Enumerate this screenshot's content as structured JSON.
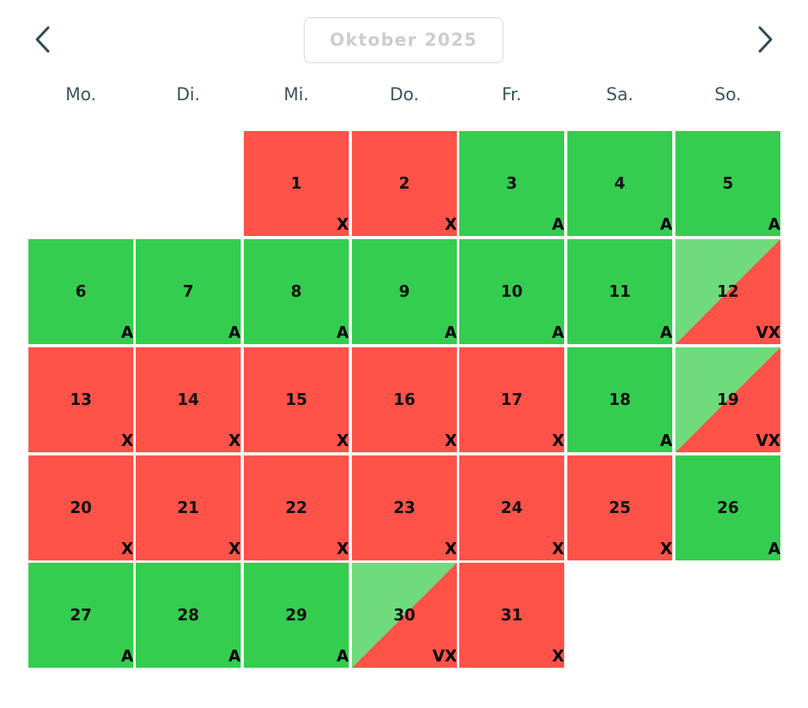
{
  "header": {
    "month_label": "Oktober 2025",
    "prev_icon": "chevron-left-icon",
    "next_icon": "chevron-right-icon"
  },
  "weekdays": [
    "Mo.",
    "Di.",
    "Mi.",
    "Do.",
    "Fr.",
    "Sa.",
    "So."
  ],
  "colors": {
    "available": "#35cd4f",
    "unavailable": "#ff5249",
    "partial_light_green": "#6fdb7d",
    "weekday_text": "#3a5560",
    "month_text": "#cdcdcd"
  },
  "days": [
    {
      "day": "1",
      "code": "X",
      "status": "red"
    },
    {
      "day": "2",
      "code": "X",
      "status": "red"
    },
    {
      "day": "3",
      "code": "A",
      "status": "green"
    },
    {
      "day": "4",
      "code": "A",
      "status": "green"
    },
    {
      "day": "5",
      "code": "A",
      "status": "green"
    },
    {
      "day": "6",
      "code": "A",
      "status": "green"
    },
    {
      "day": "7",
      "code": "A",
      "status": "green"
    },
    {
      "day": "8",
      "code": "A",
      "status": "green"
    },
    {
      "day": "9",
      "code": "A",
      "status": "green"
    },
    {
      "day": "10",
      "code": "A",
      "status": "green"
    },
    {
      "day": "11",
      "code": "A",
      "status": "green"
    },
    {
      "day": "12",
      "code": "VX",
      "status": "split"
    },
    {
      "day": "13",
      "code": "X",
      "status": "red"
    },
    {
      "day": "14",
      "code": "X",
      "status": "red"
    },
    {
      "day": "15",
      "code": "X",
      "status": "red"
    },
    {
      "day": "16",
      "code": "X",
      "status": "red"
    },
    {
      "day": "17",
      "code": "X",
      "status": "red"
    },
    {
      "day": "18",
      "code": "A",
      "status": "green"
    },
    {
      "day": "19",
      "code": "VX",
      "status": "split"
    },
    {
      "day": "20",
      "code": "X",
      "status": "red"
    },
    {
      "day": "21",
      "code": "X",
      "status": "red"
    },
    {
      "day": "22",
      "code": "X",
      "status": "red"
    },
    {
      "day": "23",
      "code": "X",
      "status": "red"
    },
    {
      "day": "24",
      "code": "X",
      "status": "red"
    },
    {
      "day": "25",
      "code": "X",
      "status": "red"
    },
    {
      "day": "26",
      "code": "A",
      "status": "green"
    },
    {
      "day": "27",
      "code": "A",
      "status": "green"
    },
    {
      "day": "28",
      "code": "A",
      "status": "green"
    },
    {
      "day": "29",
      "code": "A",
      "status": "green"
    },
    {
      "day": "30",
      "code": "VX",
      "status": "split"
    },
    {
      "day": "31",
      "code": "X",
      "status": "red"
    }
  ]
}
